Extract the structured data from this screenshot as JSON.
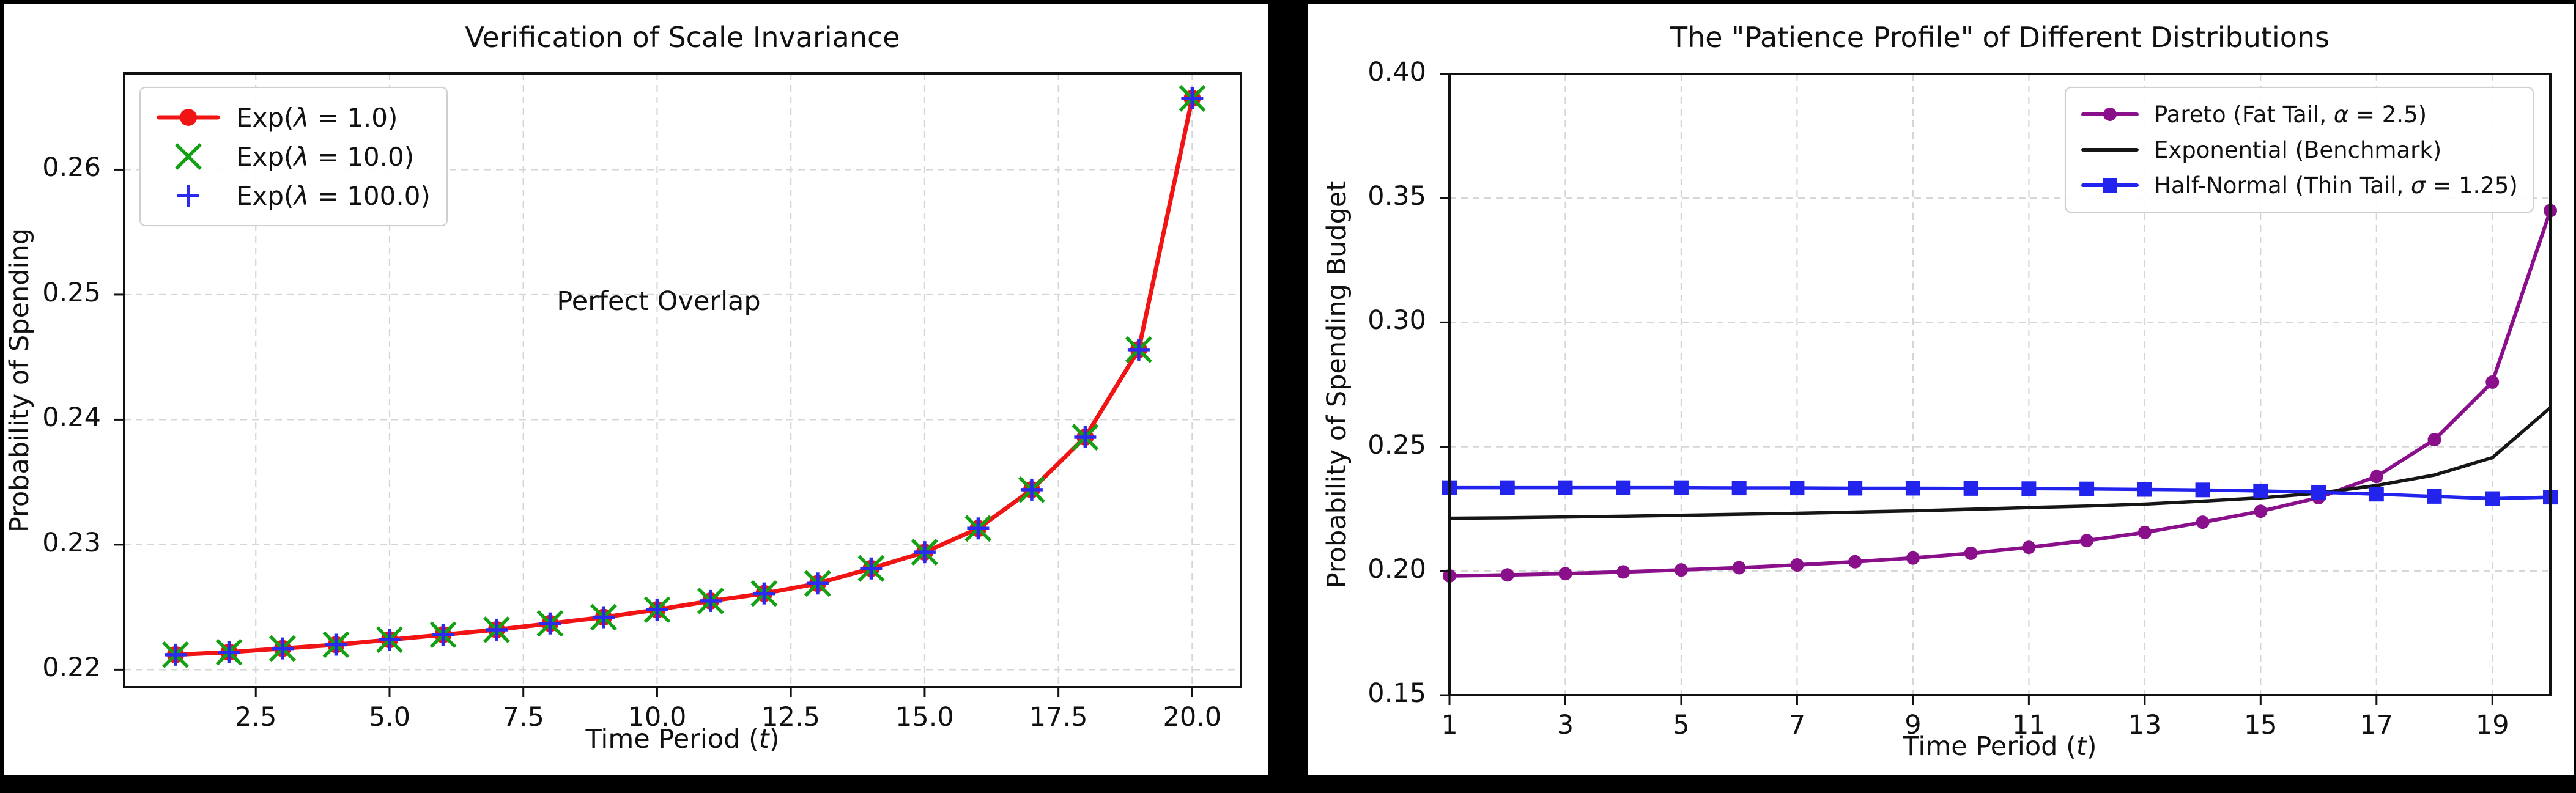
{
  "page": {
    "background": "#000000",
    "panel_background": "#ffffff"
  },
  "chart_data": [
    {
      "type": "line",
      "title": "Verification of Scale Invariance",
      "xlabel": "Time Period (t)",
      "ylabel": "Probability of Spending",
      "xlim": [
        0.04,
        20.91
      ],
      "ylim": [
        0.2186,
        0.2677
      ],
      "grid": true,
      "legend_position": "upper-left",
      "xticks": [
        2.5,
        5.0,
        7.5,
        10.0,
        12.5,
        15.0,
        17.5,
        20.0
      ],
      "xtick_labels": [
        "2.5",
        "5.0",
        "7.5",
        "10.0",
        "12.5",
        "15.0",
        "17.5",
        "20.0"
      ],
      "yticks": [
        0.22,
        0.23,
        0.24,
        0.25,
        0.26
      ],
      "ytick_labels": [
        "0.22",
        "0.23",
        "0.24",
        "0.25",
        "0.26"
      ],
      "annotation": {
        "text": "Perfect Overlap",
        "x": 10.03,
        "y": 0.2492
      },
      "x": [
        1,
        2,
        3,
        4,
        5,
        6,
        7,
        8,
        9,
        10,
        11,
        12,
        13,
        14,
        15,
        16,
        17,
        18,
        19,
        20
      ],
      "series": [
        {
          "name": "Exp(λ = 1.0)",
          "color": "#f01414",
          "marker": "circle",
          "line": true,
          "lw": 7,
          "ms": 14,
          "values": [
            0.2212,
            0.2214,
            0.2217,
            0.222,
            0.2224,
            0.2228,
            0.2232,
            0.2237,
            0.2242,
            0.2248,
            0.2255,
            0.2261,
            0.2269,
            0.2281,
            0.2294,
            0.2313,
            0.2344,
            0.2386,
            0.2456,
            0.2657
          ]
        },
        {
          "name": "Exp(λ = 10.0)",
          "color": "#12a112",
          "marker": "x",
          "line": false,
          "lw": 5.5,
          "ms": 20,
          "values": [
            0.2212,
            0.2214,
            0.2217,
            0.222,
            0.2224,
            0.2228,
            0.2232,
            0.2237,
            0.2242,
            0.2248,
            0.2255,
            0.2261,
            0.2269,
            0.2281,
            0.2294,
            0.2313,
            0.2344,
            0.2386,
            0.2456,
            0.2657
          ]
        },
        {
          "name": "Exp(λ = 100.0)",
          "color": "#2b2bf0",
          "marker": "plus",
          "line": false,
          "lw": 5.5,
          "ms": 18,
          "values": [
            0.2212,
            0.2214,
            0.2217,
            0.222,
            0.2224,
            0.2228,
            0.2232,
            0.2237,
            0.2242,
            0.2248,
            0.2255,
            0.2261,
            0.2269,
            0.2281,
            0.2294,
            0.2313,
            0.2344,
            0.2386,
            0.2456,
            0.2657
          ]
        }
      ]
    },
    {
      "type": "line",
      "title": "The \"Patience Profile\" of Different Distributions",
      "xlabel": "Time Period (t)",
      "ylabel": "Probability of Spending Budget",
      "xlim": [
        1,
        20
      ],
      "ylim": [
        0.15,
        0.4
      ],
      "grid": true,
      "legend_position": "upper-right",
      "xticks": [
        1,
        3,
        5,
        7,
        9,
        11,
        13,
        15,
        17,
        19
      ],
      "xtick_labels": [
        "1",
        "3",
        "5",
        "7",
        "9",
        "11",
        "13",
        "15",
        "17",
        "19"
      ],
      "yticks": [
        0.15,
        0.2,
        0.25,
        0.3,
        0.35,
        0.4
      ],
      "ytick_labels": [
        "0.15",
        "0.20",
        "0.25",
        "0.30",
        "0.35",
        "0.40"
      ],
      "x": [
        1,
        2,
        3,
        4,
        5,
        6,
        7,
        8,
        9,
        10,
        11,
        12,
        13,
        14,
        15,
        16,
        17,
        18,
        19,
        20
      ],
      "series": [
        {
          "name": "Pareto (Fat Tail, α = 2.5)",
          "color": "#8a0f8a",
          "marker": "circle",
          "line": true,
          "lw": 6,
          "ms": 11,
          "values": [
            0.198,
            0.1984,
            0.1989,
            0.1996,
            0.2004,
            0.2013,
            0.2024,
            0.2037,
            0.2052,
            0.2071,
            0.2095,
            0.2122,
            0.2155,
            0.2196,
            0.224,
            0.2295,
            0.238,
            0.2528,
            0.276,
            0.345
          ]
        },
        {
          "name": "Exponential (Benchmark)",
          "color": "#161616",
          "marker": "none",
          "line": true,
          "lw": 5.5,
          "ms": 0,
          "values": [
            0.2212,
            0.2214,
            0.2217,
            0.222,
            0.2224,
            0.2228,
            0.2232,
            0.2237,
            0.2242,
            0.2248,
            0.2255,
            0.2261,
            0.2269,
            0.2281,
            0.2294,
            0.2313,
            0.2344,
            0.2386,
            0.2456,
            0.2657
          ]
        },
        {
          "name": "Half-Normal (Thin Tail, σ = 1.25)",
          "color": "#2323ee",
          "marker": "square",
          "line": true,
          "lw": 5.5,
          "ms": 12,
          "values": [
            0.2335,
            0.2335,
            0.2335,
            0.2335,
            0.2335,
            0.2334,
            0.2334,
            0.2333,
            0.2333,
            0.2332,
            0.2331,
            0.233,
            0.2328,
            0.2326,
            0.2322,
            0.2317,
            0.2309,
            0.23,
            0.2291,
            0.2297
          ]
        }
      ]
    }
  ]
}
